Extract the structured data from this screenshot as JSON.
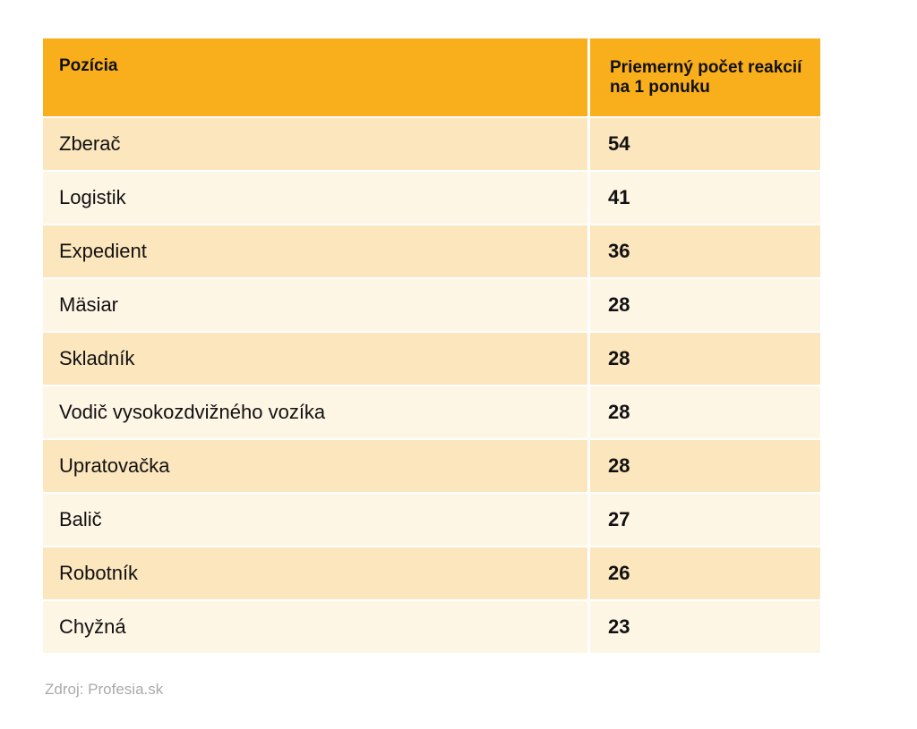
{
  "table": {
    "header": [
      "Pozícia",
      "Priemerný počet reakcií na 1 ponuku"
    ],
    "rows": [
      [
        "Zberač",
        54
      ],
      [
        "Logistik",
        41
      ],
      [
        "Expedient",
        36
      ],
      [
        "Mäsiar",
        28
      ],
      [
        "Skladník",
        28
      ],
      [
        "Vodič vysokozdvižného vozíka",
        28
      ],
      [
        "Upratovačka",
        28
      ],
      [
        "Balič",
        27
      ],
      [
        "Robotník",
        26
      ],
      [
        "Chyžná",
        23
      ]
    ]
  },
  "source": "Zdroj: Profesia.sk"
}
